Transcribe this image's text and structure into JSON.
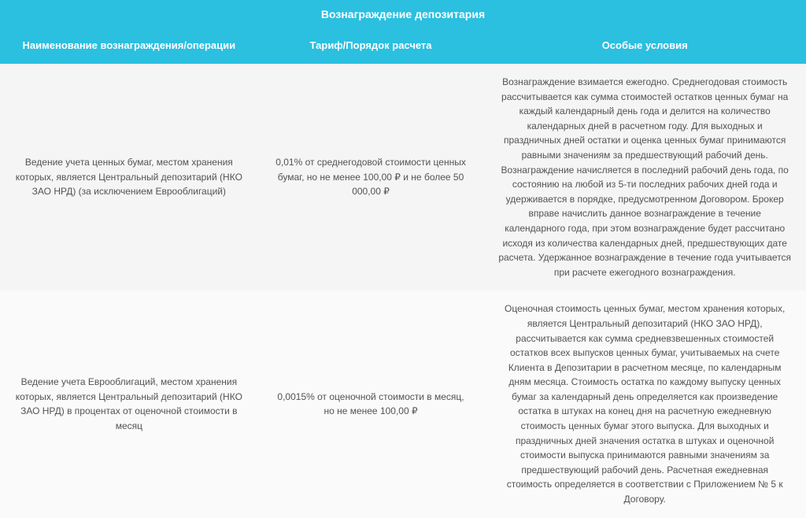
{
  "table": {
    "title": "Вознаграждение депозитария",
    "columns": [
      "Наименование вознаграждения/операции",
      "Тариф/Порядок расчета",
      "Особые условия"
    ],
    "rows": [
      {
        "name": "Ведение учета ценных бумаг, местом хранения которых, является Центральный депозитарий (НКО ЗАО НРД) (за исключением Еврооблигаций)",
        "tariff": "0,01% от среднегодовой стоимости ценных бумаг, но не менее 100,00 ₽ и не более 50 000,00 ₽",
        "conditions": "Вознаграждение взимается ежегодно. Среднегодовая стоимость рассчитывается как сумма стоимостей остатков ценных бумаг на каждый календарный день года и делится на количество календарных дней в расчетном году. Для выходных и праздничных дней остатки и оценка ценных бумаг принимаются равными значениям за предшествующий рабочий день. Вознаграждение начисляется в последний рабочий день года, по состоянию на любой из 5-ти последних рабочих дней года и удерживается в порядке, предусмотренном Договором. Брокер вправе начислить данное вознаграждение в течение календарного года, при этом вознаграждение будет рассчитано исходя из количества календарных дней, предшествующих дате расчета. Удержанное вознаграждение в течение года учитывается при расчете ежегодного вознаграждения."
      },
      {
        "name": "Ведение учета Еврооблигаций, местом хранения которых, является Центральный депозитарий (НКО ЗАО НРД) в процентах от оценочной стоимости в месяц",
        "tariff": "0,0015% от оценочной стоимости в месяц, но не менее 100,00 ₽",
        "conditions": "Оценочная стоимость ценных бумаг, местом хранения которых, является Центральный депозитарий (НКО ЗАО НРД), рассчитывается как сумма средневзвешенных стоимостей остатков всех выпусков ценных бумаг, учитываемых на счете Клиента в Депозитарии в расчетном месяце, по календарным дням месяца. Стоимость остатка по каждому выпуску ценных бумаг за календарный день определяется как произведение остатка в штуках на конец дня на расчетную ежедневную стоимость ценных бумаг этого выпуска. Для выходных и праздничных дней значения остатка в штуках и оценочной стоимости выпуска принимаются равными значениям за предшествующий рабочий день. Расчетная ежедневная стоимость определяется в соответствии с Приложением № 5 к Договору."
      }
    ],
    "colors": {
      "header_bg": "#2bbfe0",
      "header_text": "#ffffff",
      "row_even_bg": "#f5f5f5",
      "row_odd_bg": "#fafafa",
      "body_text": "#535353"
    },
    "column_widths_pct": [
      32,
      28,
      40
    ]
  }
}
